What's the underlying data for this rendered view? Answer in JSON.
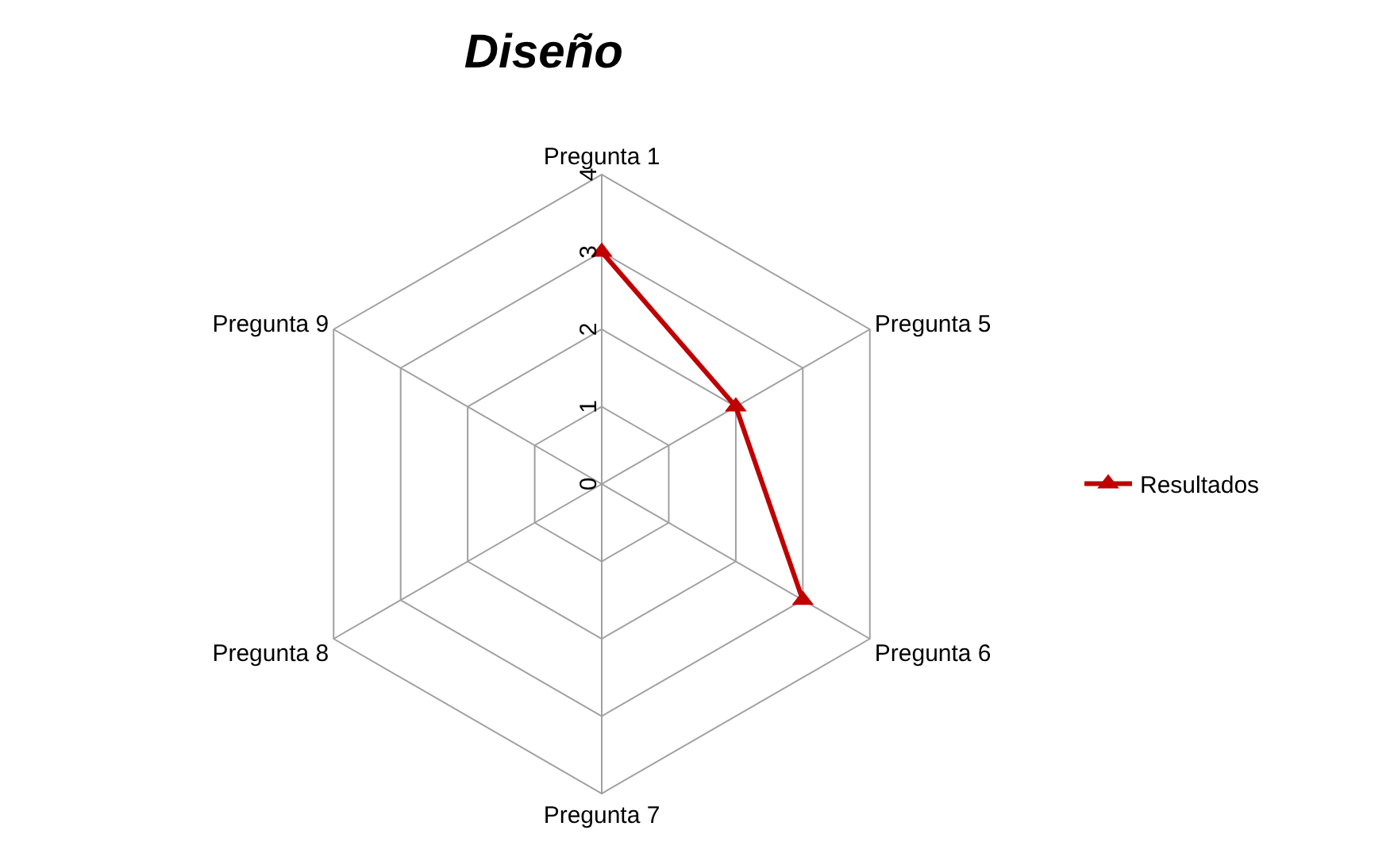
{
  "chart_data": {
    "type": "radar",
    "title": "Diseño",
    "categories": [
      "Pregunta 1",
      "Pregunta 5",
      "Pregunta 6",
      "Pregunta 7",
      "Pregunta 8",
      "Pregunta 9"
    ],
    "series": [
      {
        "name": "Resultados",
        "color": "#c00000",
        "values": [
          3,
          2,
          3,
          null,
          null,
          null
        ]
      }
    ],
    "ylim": [
      0,
      4
    ],
    "yticks": [
      0,
      1,
      2,
      3,
      4
    ],
    "grid": true,
    "legend": "right",
    "marker": "triangle",
    "line_style": "solid"
  }
}
